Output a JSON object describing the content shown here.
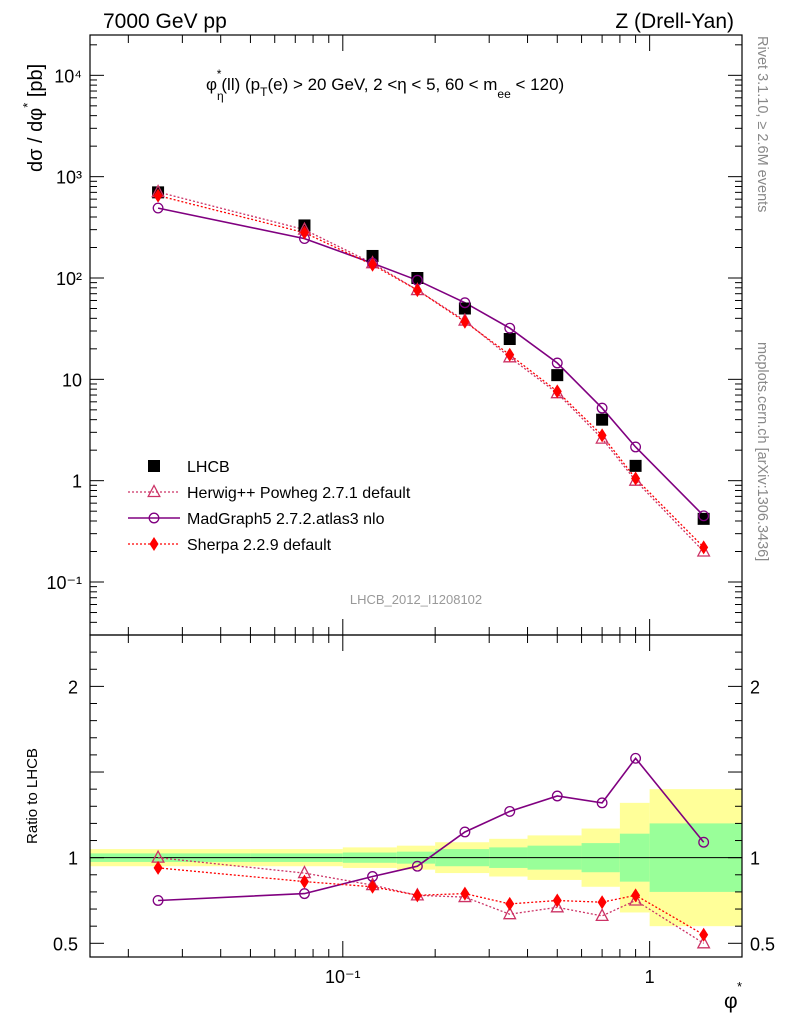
{
  "header": {
    "left": "7000 GeV pp",
    "right": "Z (Drell-Yan)",
    "subtitle": "φ*η(ll) (pT(e) > 20 GeV, 2 <η < 5, 60 < mee < 120)"
  },
  "side_texts": {
    "rivet": "Rivet 3.1.10, ≥ 2.6M events",
    "mcplots": "mcplots.cern.ch [arXiv:1306.3436]"
  },
  "watermark": "LHCB_2012_I1208102",
  "colors": {
    "data": "#000000",
    "herwig": "#cc3366",
    "madgraph": "#800080",
    "sherpa": "#ff0000",
    "band_inner": "#99ff99",
    "band_outer": "#ffff99"
  },
  "chart_data": [
    {
      "type": "scatter",
      "panel": "main",
      "ylabel": "dσ / dφ* [pb]",
      "xscale": "log",
      "yscale": "log",
      "xlim": [
        0.015,
        2.0
      ],
      "ylim": [
        0.03,
        25000
      ],
      "y_ticks": [
        {
          "value": 0.1,
          "label": "10⁻¹"
        },
        {
          "value": 1,
          "label": "1"
        },
        {
          "value": 10,
          "label": "10"
        },
        {
          "value": 100,
          "label": "10²"
        },
        {
          "value": 1000,
          "label": "10³"
        },
        {
          "value": 10000,
          "label": "10⁴"
        }
      ],
      "x": [
        0.025,
        0.075,
        0.125,
        0.175,
        0.25,
        0.35,
        0.5,
        0.7,
        0.9,
        1.5
      ],
      "series": [
        {
          "name": "LHCB",
          "key": "data",
          "marker": "square",
          "values": [
            700,
            330,
            165,
            100,
            50,
            25,
            11,
            4.0,
            1.4,
            0.42
          ]
        },
        {
          "name": "Herwig++ Powheg 2.7.1 default",
          "key": "herwig",
          "marker": "triangle",
          "values": [
            705,
            300,
            140,
            76,
            38,
            16.5,
            7.3,
            2.6,
            1.0,
            0.2
          ]
        },
        {
          "name": "MadGraph5 2.7.2.atlas3 nlo",
          "key": "madgraph",
          "marker": "circle",
          "values": [
            490,
            245,
            140,
            95,
            57,
            32,
            14.5,
            5.2,
            2.15,
            0.45
          ]
        },
        {
          "name": "Sherpa 2.2.9 default",
          "key": "sherpa",
          "marker": "diamond",
          "values": [
            650,
            280,
            135,
            76,
            37,
            17.5,
            7.6,
            2.8,
            1.05,
            0.22
          ]
        }
      ]
    },
    {
      "type": "scatter",
      "panel": "ratio",
      "xlabel": "φ*",
      "ylabel": "Ratio to LHCB",
      "xscale": "log",
      "xlim": [
        0.015,
        2.0
      ],
      "ylim": [
        0.42,
        2.3
      ],
      "y_ticks": [
        {
          "value": 0.5,
          "label": "0.5"
        },
        {
          "value": 1,
          "label": "1"
        },
        {
          "value": 2,
          "label": "2"
        }
      ],
      "x_ticks": [
        {
          "value": 0.1,
          "label": "10⁻¹"
        },
        {
          "value": 1,
          "label": "1"
        }
      ],
      "x": [
        0.025,
        0.075,
        0.125,
        0.175,
        0.25,
        0.35,
        0.5,
        0.7,
        0.9,
        1.5
      ],
      "bin_edges": [
        0.0,
        0.05,
        0.1,
        0.15,
        0.2,
        0.3,
        0.4,
        0.6,
        0.8,
        1.0,
        2.0
      ],
      "band_inner": [
        0.025,
        0.025,
        0.03,
        0.035,
        0.05,
        0.06,
        0.07,
        0.085,
        0.14,
        0.2
      ],
      "band_outer": [
        0.05,
        0.05,
        0.06,
        0.07,
        0.09,
        0.11,
        0.13,
        0.17,
        0.32,
        0.4
      ],
      "series": [
        {
          "name": "Herwig++ Powheg 2.7.1 default",
          "key": "herwig",
          "marker": "triangle",
          "values": [
            1.0,
            0.91,
            0.84,
            0.78,
            0.77,
            0.67,
            0.71,
            0.66,
            0.75,
            0.5
          ]
        },
        {
          "name": "MadGraph5 2.7.2.atlas3 nlo",
          "key": "madgraph",
          "marker": "circle",
          "values": [
            0.75,
            0.79,
            0.89,
            0.95,
            1.15,
            1.27,
            1.36,
            1.32,
            1.58,
            1.09
          ]
        },
        {
          "name": "Sherpa 2.2.9 default",
          "key": "sherpa",
          "marker": "diamond",
          "values": [
            0.94,
            0.86,
            0.83,
            0.78,
            0.79,
            0.73,
            0.75,
            0.74,
            0.78,
            0.55
          ]
        }
      ]
    }
  ]
}
